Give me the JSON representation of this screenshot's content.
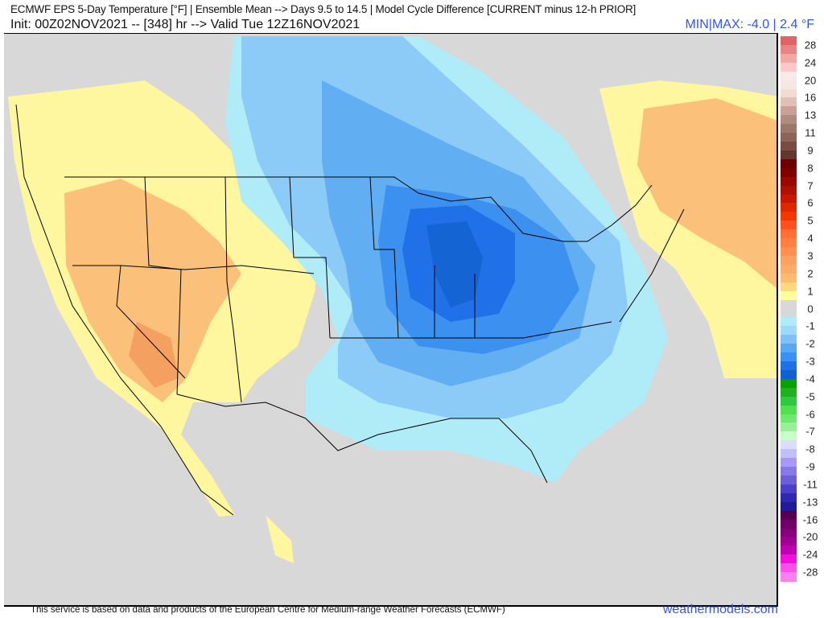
{
  "header": {
    "title": "ECMWF EPS 5-Day Temperature [°F] | Ensemble Mean --> Days 9.5 to 14.5 | Model Cycle Difference [CURRENT minus 12-h PRIOR]",
    "init": "Init: 00Z02NOV2021 -- [348] hr --> Valid Tue 12Z16NOV2021",
    "minmax": "MIN|MAX: -4.0 | 2.4 °F"
  },
  "legend": {
    "labels": [
      "28",
      "24",
      "20",
      "16",
      "13",
      "11",
      "9",
      "8",
      "7",
      "6",
      "5",
      "4",
      "3",
      "2",
      "1",
      "0",
      "-1",
      "-2",
      "-3",
      "-4",
      "-5",
      "-6",
      "-7",
      "-8",
      "-9",
      "-11",
      "-13",
      "-16",
      "-20",
      "-24",
      "-28"
    ],
    "colors": [
      "#e06464",
      "#e88484",
      "#f0a8a0",
      "#fcc8c8",
      "#f8eaea",
      "#f4e8e0",
      "#f0dcd0",
      "#e0c0b4",
      "#c8a098",
      "#b08c80",
      "#9c7868",
      "#8c6458",
      "#784c40",
      "#603830",
      "#6c0000",
      "#800000",
      "#980800",
      "#b01000",
      "#c81800",
      "#e02800",
      "#f03800",
      "#ff5020",
      "#ff7038",
      "#ff8040",
      "#ff9050",
      "#ffa060",
      "#ffac68",
      "#ffbc70",
      "#ffd880",
      "#ffff9c",
      "#d8d8d8",
      "#d8d8d8",
      "#b0ecf8",
      "#a0d8f8",
      "#80c0f8",
      "#58a8f0",
      "#3c90f0",
      "#2070e8",
      "#1060d0",
      "#08a000",
      "#20b020",
      "#30c840",
      "#50e050",
      "#70e870",
      "#98f098",
      "#c8ffc8",
      "#dcdcfc",
      "#c0c0f8",
      "#a898f8",
      "#8878e8",
      "#6c60d8",
      "#4c40c8",
      "#3028b0",
      "#201c98",
      "#580050",
      "#700068",
      "#880078",
      "#a00090",
      "#c000b0",
      "#f010d8",
      "#f850e8",
      "#f880f0"
    ]
  },
  "footer": {
    "credit": "This service is based on data and products of the European Centre for Medium-range Weather Forecasts (ECMWF)",
    "brand": "weathermodels.com"
  }
}
